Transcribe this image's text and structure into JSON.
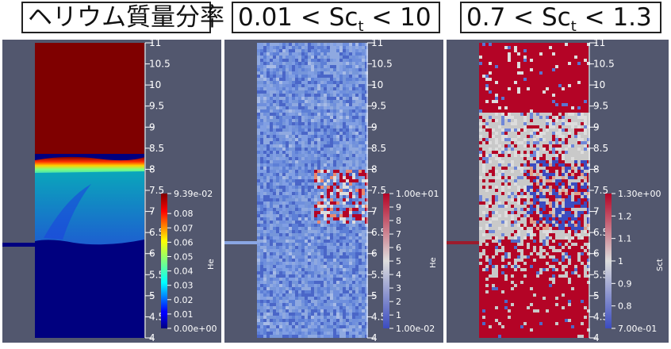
{
  "titles": {
    "panel1": "ヘリウム質量分率",
    "panel2_left": "0.01 < Sc",
    "panel2_sub": "t",
    "panel2_right": " < 10",
    "panel3_left": "0.7 < Sc",
    "panel3_sub": "t",
    "panel3_right": " < 1.3"
  },
  "axis_ticks": [
    "11",
    "10.5",
    "10",
    "9.5",
    "9",
    "8.5",
    "8",
    "7.5",
    "7",
    "6.5",
    "6",
    "5.5",
    "5",
    "4.5",
    "4"
  ],
  "axis_range": [
    4,
    11
  ],
  "panels": [
    {
      "variable": "He",
      "colorbar": {
        "labels": [
          "9.39e-02",
          "0.08",
          "0.07",
          "0.06",
          "0.05",
          "0.04",
          "0.03",
          "0.02",
          "0.01",
          "0.00e+00"
        ],
        "max": 0.0939,
        "min": 0.0
      }
    },
    {
      "variable": "He",
      "colorbar": {
        "labels": [
          "1.00e+01",
          "9",
          "8",
          "7",
          "6",
          "5",
          "4",
          "3",
          "2",
          "1",
          "1.00e-02"
        ],
        "max": 10.0,
        "min": 0.01
      }
    },
    {
      "variable": "Sct",
      "colorbar": {
        "labels": [
          "1.30e+00",
          "1.2",
          "1.1",
          "1",
          "0.9",
          "0.8",
          "7.00e-01"
        ],
        "max": 1.3,
        "min": 0.7
      }
    }
  ],
  "colors": {
    "panel_bg": "#52576e",
    "tick": "#ffffff",
    "jet_top": "#7f0000",
    "jet_bottom": "#00007f"
  }
}
